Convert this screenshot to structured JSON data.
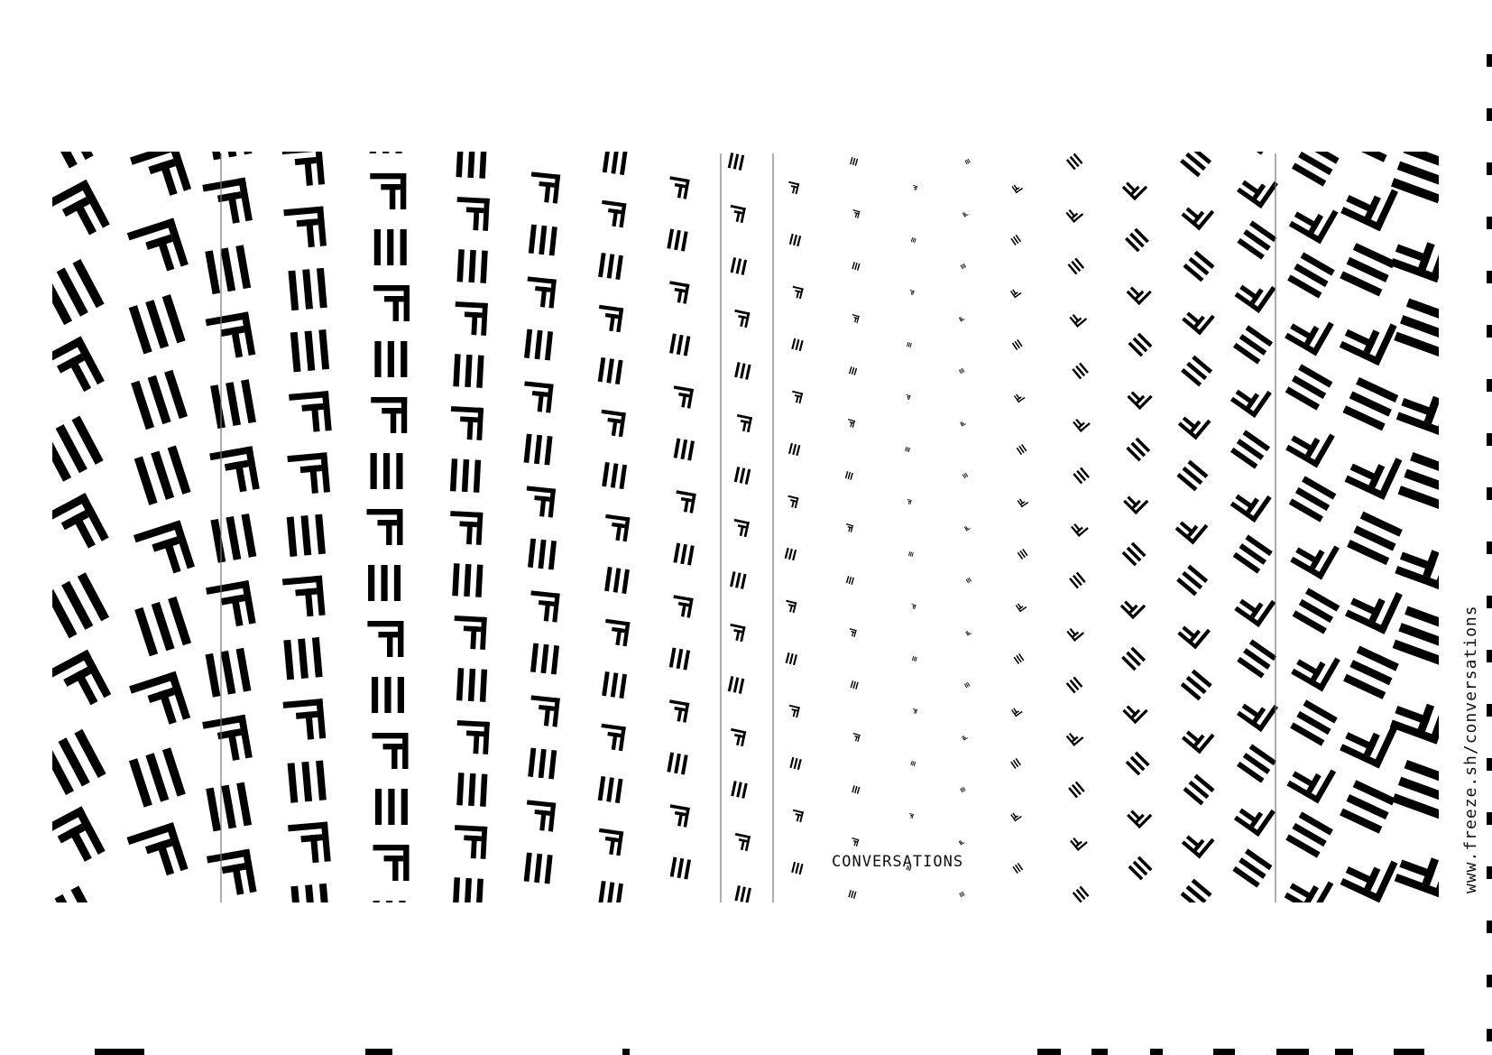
{
  "poster": {
    "title": "CONVERSATIONS",
    "url": "www.freeze.sh/conversations"
  },
  "colors": {
    "background": "#ffffff",
    "ink": "#000000",
    "rule": "#777777"
  },
  "glyphs": [
    "bars-glyph",
    "corner-glyph"
  ]
}
